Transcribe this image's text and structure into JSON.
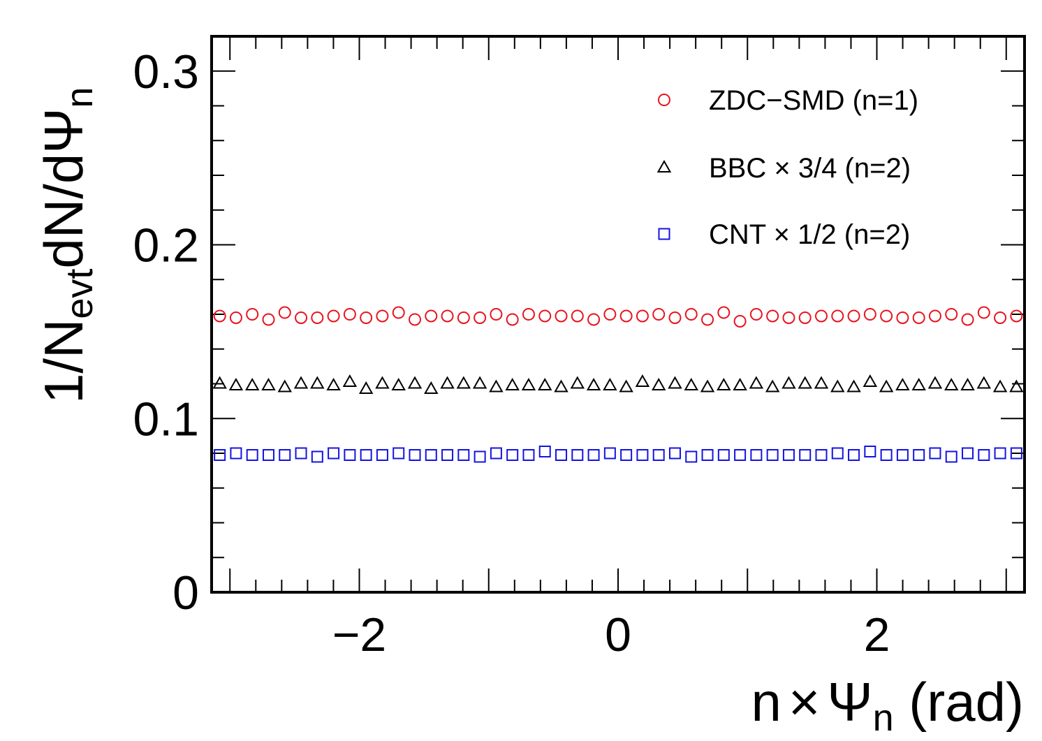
{
  "chart_data": {
    "type": "scatter",
    "xlabel": {
      "prefix": "n",
      "times": "×",
      "symbol": "Ψ",
      "subscript": "n",
      "suffix": " (rad)"
    },
    "ylabel": {
      "prefix": "1/N",
      "subscript1": "evt",
      "middle": "dN/dΨ",
      "subscript2": "n"
    },
    "xlim": [
      -3.1416,
      3.1416
    ],
    "ylim": [
      0,
      0.32
    ],
    "xticks": [
      -2,
      0,
      2
    ],
    "xtick_labels": [
      "−2",
      "0",
      "2"
    ],
    "yticks": [
      0,
      0.1,
      0.2,
      0.3
    ],
    "ytick_labels": [
      "0",
      "0.1",
      "0.2",
      "0.3"
    ],
    "grid": false,
    "legend_position": "top-right",
    "series": [
      {
        "name": "ZDC−SMD (n=1)",
        "marker": "circle",
        "color": "#e8141e",
        "values": [
          0.159,
          0.158,
          0.16,
          0.157,
          0.161,
          0.158,
          0.158,
          0.159,
          0.16,
          0.158,
          0.159,
          0.161,
          0.157,
          0.159,
          0.159,
          0.158,
          0.158,
          0.16,
          0.157,
          0.16,
          0.159,
          0.159,
          0.159,
          0.157,
          0.16,
          0.159,
          0.159,
          0.16,
          0.158,
          0.16,
          0.157,
          0.161,
          0.156,
          0.16,
          0.159,
          0.158,
          0.158,
          0.159,
          0.159,
          0.159,
          0.16,
          0.159,
          0.158,
          0.158,
          0.159,
          0.16,
          0.157,
          0.161,
          0.158,
          0.159
        ]
      },
      {
        "name": "BBC × 3/4 (n=2)",
        "marker": "triangle",
        "color": "#000000",
        "values": [
          0.12,
          0.119,
          0.119,
          0.119,
          0.118,
          0.12,
          0.12,
          0.119,
          0.121,
          0.117,
          0.12,
          0.119,
          0.12,
          0.117,
          0.12,
          0.12,
          0.12,
          0.118,
          0.119,
          0.119,
          0.119,
          0.118,
          0.12,
          0.119,
          0.119,
          0.118,
          0.121,
          0.119,
          0.12,
          0.119,
          0.118,
          0.119,
          0.119,
          0.12,
          0.118,
          0.12,
          0.12,
          0.12,
          0.118,
          0.118,
          0.121,
          0.118,
          0.119,
          0.119,
          0.12,
          0.119,
          0.119,
          0.12,
          0.118,
          0.118
        ]
      },
      {
        "name": "CNT × 1/2 (n=2)",
        "marker": "square",
        "color": "#1414e0",
        "values": [
          0.079,
          0.08,
          0.079,
          0.079,
          0.079,
          0.08,
          0.078,
          0.08,
          0.079,
          0.079,
          0.079,
          0.08,
          0.079,
          0.079,
          0.079,
          0.079,
          0.078,
          0.08,
          0.079,
          0.079,
          0.081,
          0.079,
          0.079,
          0.079,
          0.08,
          0.079,
          0.079,
          0.079,
          0.08,
          0.078,
          0.079,
          0.079,
          0.079,
          0.079,
          0.079,
          0.079,
          0.079,
          0.079,
          0.08,
          0.079,
          0.081,
          0.079,
          0.079,
          0.079,
          0.08,
          0.078,
          0.08,
          0.079,
          0.08,
          0.08
        ]
      }
    ]
  }
}
